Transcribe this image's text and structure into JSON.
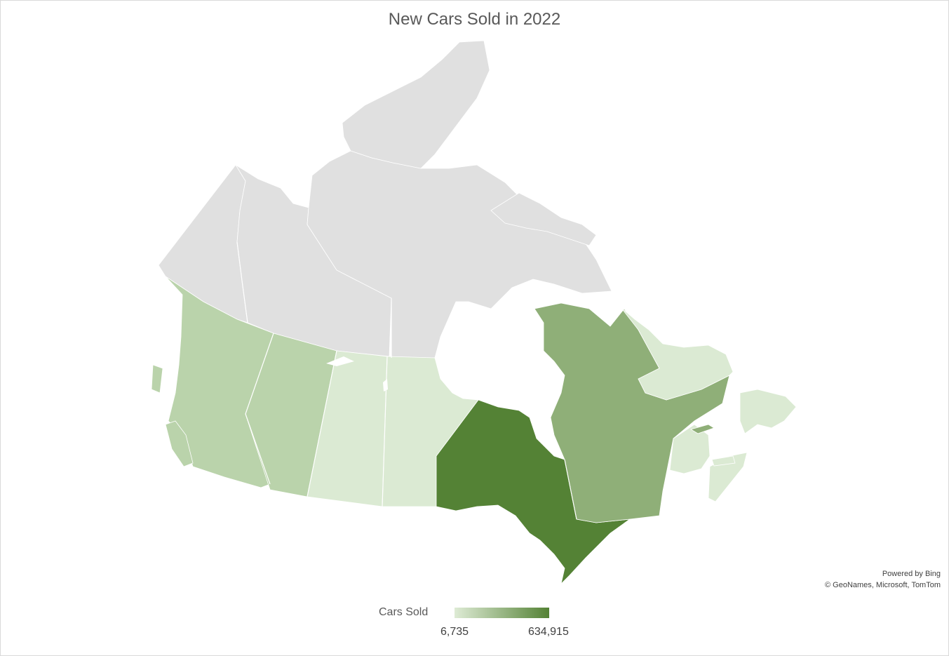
{
  "title": "New Cars Sold in 2022",
  "legend": {
    "title": "Cars Sold",
    "min_label": "6,735",
    "max_label": "634,915",
    "min_value": 6735,
    "max_value": 634915,
    "color_min": "#deebd5",
    "color_max": "#548235"
  },
  "no_data_color": "#e0e0e0",
  "attribution": {
    "line1": "Powered by Bing",
    "line2": "© GeoNames, Microsoft, TomTom"
  },
  "regions": [
    {
      "name": "British Columbia",
      "shade": "#bad3ab"
    },
    {
      "name": "Alberta",
      "shade": "#bad3ab"
    },
    {
      "name": "Saskatchewan",
      "shade": "#dbead3"
    },
    {
      "name": "Manitoba",
      "shade": "#dbead3"
    },
    {
      "name": "Ontario",
      "shade": "#548235"
    },
    {
      "name": "Quebec",
      "shade": "#8faf78"
    },
    {
      "name": "Newfoundland and Labrador",
      "shade": "#dbead3"
    },
    {
      "name": "New Brunswick",
      "shade": "#dbead3"
    },
    {
      "name": "Nova Scotia",
      "shade": "#dbead3"
    },
    {
      "name": "Prince Edward Island",
      "shade": "#dbead3"
    },
    {
      "name": "Yukon",
      "shade": "#e0e0e0"
    },
    {
      "name": "Northwest Territories",
      "shade": "#e0e0e0"
    },
    {
      "name": "Nunavut",
      "shade": "#e0e0e0"
    }
  ]
}
